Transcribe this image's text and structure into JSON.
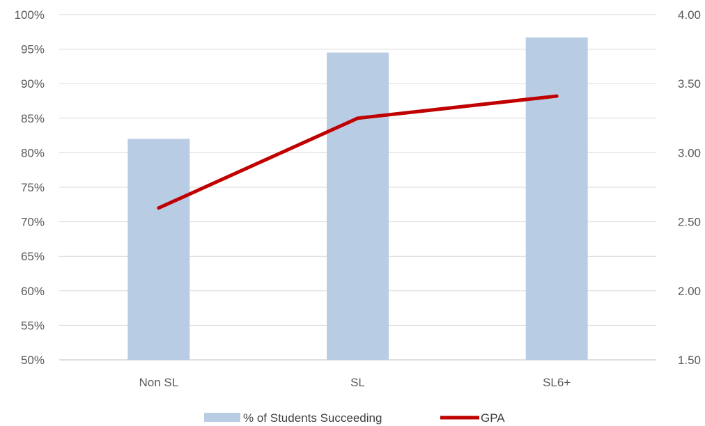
{
  "chart_data": {
    "type": "bar",
    "categories": [
      "Non SL",
      "SL",
      "SL6+"
    ],
    "series": [
      {
        "name": "% of Students Succeeding",
        "type": "bar",
        "axis": "left",
        "values": [
          82,
          94.5,
          96.7
        ],
        "color": "#b8cce4"
      },
      {
        "name": "GPA",
        "type": "line",
        "axis": "right",
        "values": [
          2.6,
          3.25,
          3.41
        ],
        "color": "#c00000"
      }
    ],
    "y_left": {
      "ylim": [
        50,
        100
      ],
      "ticks": [
        "50%",
        "55%",
        "60%",
        "65%",
        "70%",
        "75%",
        "80%",
        "85%",
        "90%",
        "95%",
        "100%"
      ]
    },
    "y_right": {
      "ylim": [
        1.5,
        4.0
      ],
      "ticks": [
        "1.50",
        "2.00",
        "2.50",
        "3.00",
        "3.50",
        "4.00"
      ]
    },
    "grid": true,
    "gridColor": "#d9d9d9",
    "legend_position": "bottom"
  }
}
